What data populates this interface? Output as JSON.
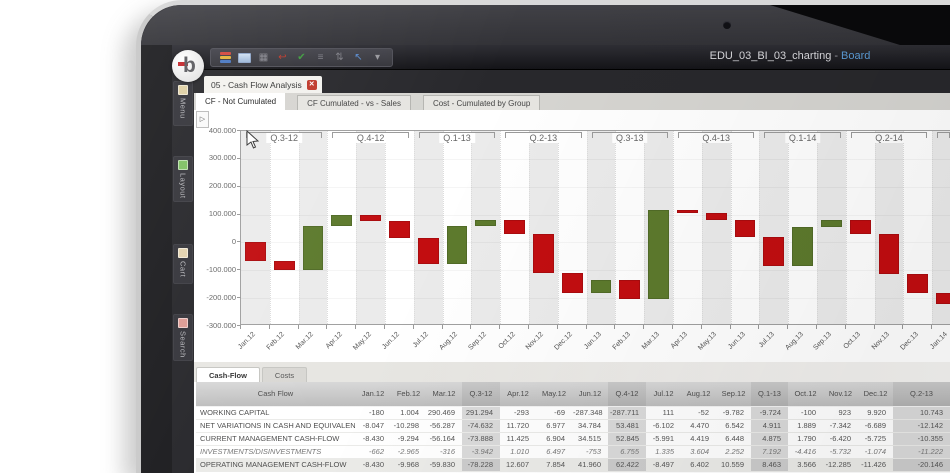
{
  "window": {
    "title": "EDU_03_BI_03_charting",
    "separator": "-",
    "title_brand": "Board",
    "logo_letter": "b"
  },
  "icons": {
    "close_glyph": "✕",
    "panel_arrow_glyph": "▷"
  },
  "toolbar": {
    "icons": [
      {
        "name": "capsules-stack-icon",
        "type": "stack"
      },
      {
        "name": "screen-icon",
        "type": "monitor"
      },
      {
        "name": "slide-grid-icon",
        "glyph": "▦",
        "color": "#8a8a92"
      },
      {
        "name": "undo-arrow-icon",
        "glyph": "↩",
        "color": "#c0392b"
      },
      {
        "name": "apply-check-icon",
        "glyph": "✔",
        "color": "#3f9b3f"
      },
      {
        "name": "list-icon",
        "glyph": "≡",
        "color": "#7d7d85"
      },
      {
        "name": "swap-icon",
        "glyph": "⇅",
        "color": "#7d7d85"
      },
      {
        "name": "design-pointer-icon",
        "glyph": "↖",
        "color": "#5b8fd6"
      },
      {
        "name": "toolbar-overflow-icon",
        "glyph": "▾",
        "color": "#9a9aa0"
      }
    ]
  },
  "doc_tab": {
    "label": "05 - Cash Flow Analysis"
  },
  "subtabs": [
    {
      "label": "CF - Not Cumulated",
      "active": true
    },
    {
      "label": "CF Cumulated - vs - Sales",
      "active": false
    },
    {
      "label": "Cost - Cumulated by Group",
      "active": false
    }
  ],
  "sidebar": {
    "items": [
      {
        "label": "Menu",
        "icon_color": "#dfd0a4"
      },
      {
        "label": "Layout",
        "icon_color": "#7fc163"
      },
      {
        "label": "Cart",
        "icon_color": "#e3d2ae"
      },
      {
        "label": "Search",
        "icon_color": "#dd9b94"
      }
    ]
  },
  "colors": {
    "bar_up": "#5d7a2d",
    "bar_down": "#c20d10",
    "accent_blue": "#5b9bd5",
    "close_red": "#c0392b",
    "band_gray": "#ebebeb",
    "quarter_shade": "#dadada"
  },
  "chart_data": {
    "type": "bar",
    "subtype": "waterfall",
    "title": "CF - Not Cumulated",
    "xlabel": "",
    "ylabel": "",
    "ylim": [
      -300000,
      400000
    ],
    "grid": "alternating vertical month bands",
    "legend": "none",
    "ytick_labels": [
      "400.000",
      "300.000",
      "200.000",
      "100.000",
      "0",
      "-100.000",
      "-200.000",
      "-300.000"
    ],
    "categories": [
      "Jan.12",
      "Feb.12",
      "Mar.12",
      "Apr.12",
      "May.12",
      "Jun.12",
      "Jul.12",
      "Aug.12",
      "Sep.12",
      "Oct.12",
      "Nov.12",
      "Dec.12",
      "Jan.13",
      "Feb.13",
      "Mar.13",
      "Apr.13",
      "May.13",
      "Jun.13",
      "Jul.13",
      "Aug.13",
      "Sep.13",
      "Oct.13",
      "Nov.13",
      "Dec.13",
      "Jan.14"
    ],
    "bars": [
      {
        "month": "Jan.12",
        "start": 0,
        "end": -65000
      },
      {
        "month": "Feb.12",
        "start": -65000,
        "end": -100000
      },
      {
        "month": "Mar.12",
        "start": -100000,
        "end": 60000
      },
      {
        "month": "Apr.12",
        "start": 60000,
        "end": 100000
      },
      {
        "month": "May.12",
        "start": 100000,
        "end": 78000
      },
      {
        "month": "Jun.12",
        "start": 78000,
        "end": 15000
      },
      {
        "month": "Jul.12",
        "start": 15000,
        "end": -78000
      },
      {
        "month": "Aug.12",
        "start": -78000,
        "end": 58000
      },
      {
        "month": "Sep.12",
        "start": 58000,
        "end": 80000
      },
      {
        "month": "Oct.12",
        "start": 80000,
        "end": 30000
      },
      {
        "month": "Nov.12",
        "start": 30000,
        "end": -108000
      },
      {
        "month": "Dec.12",
        "start": -108000,
        "end": -180000
      },
      {
        "month": "Jan.13",
        "start": -180000,
        "end": -135000
      },
      {
        "month": "Feb.13",
        "start": -135000,
        "end": -202000
      },
      {
        "month": "Mar.13",
        "start": -202000,
        "end": 117000
      },
      {
        "month": "Apr.13",
        "start": 117000,
        "end": 105000
      },
      {
        "month": "May.13",
        "start": 105000,
        "end": 82000
      },
      {
        "month": "Jun.13",
        "start": 82000,
        "end": 18000
      },
      {
        "month": "Jul.13",
        "start": 18000,
        "end": -85000
      },
      {
        "month": "Aug.13",
        "start": -85000,
        "end": 57000
      },
      {
        "month": "Sep.13",
        "start": 57000,
        "end": 82000
      },
      {
        "month": "Oct.13",
        "start": 82000,
        "end": 30000
      },
      {
        "month": "Nov.13",
        "start": 30000,
        "end": -112000
      },
      {
        "month": "Dec.13",
        "start": -112000,
        "end": -183000
      },
      {
        "month": "Jan.14",
        "start": -183000,
        "end": -220000
      }
    ],
    "quarters": [
      {
        "label": "Q.3-12"
      },
      {
        "label": "Q.4-12"
      },
      {
        "label": "Q.1-13"
      },
      {
        "label": "Q.2-13"
      },
      {
        "label": "Q.3-13"
      },
      {
        "label": "Q.4-13"
      },
      {
        "label": "Q.1-14"
      },
      {
        "label": "Q.2-14"
      },
      {
        "label": ""
      }
    ]
  },
  "table": {
    "tabs": [
      {
        "label": "Cash-Flow",
        "active": true
      },
      {
        "label": "Costs",
        "active": false
      }
    ],
    "header": [
      "Cash Flow",
      "Jan.12",
      "Feb.12",
      "Mar.12",
      "Q.3-12",
      "Apr.12",
      "May.12",
      "Jun.12",
      "Q.4-12",
      "Jul.12",
      "Aug.12",
      "Sep.12",
      "Q.1-13",
      "Oct.12",
      "Nov.12",
      "Dec.12",
      "Q.2-13"
    ],
    "quarter_columns": [
      4,
      8,
      12,
      16
    ],
    "rows": [
      {
        "label": "WORKING CAPITAL",
        "style": "normal",
        "values": [
          "-180",
          "1.004",
          "290.469",
          "291.294",
          "-293",
          "-69",
          "-287.348",
          "-287.711",
          "111",
          "-52",
          "-9.782",
          "-9.724",
          "-100",
          "923",
          "9.920",
          "10.743"
        ]
      },
      {
        "label": "NET VARIATIONS IN CASH AND EQUIVALENTS",
        "style": "normal",
        "values": [
          "-8.047",
          "-10.298",
          "-56.287",
          "-74.632",
          "11.720",
          "6.977",
          "34.784",
          "53.481",
          "-6.102",
          "4.470",
          "6.542",
          "4.911",
          "1.889",
          "-7.342",
          "-6.689",
          "-12.142"
        ]
      },
      {
        "label": "CURRENT MANAGEMENT CASH-FLOW",
        "style": "normal",
        "values": [
          "-8.430",
          "-9.294",
          "-56.164",
          "-73.888",
          "11.425",
          "6.904",
          "34.515",
          "52.845",
          "-5.991",
          "4.419",
          "6.448",
          "4.875",
          "1.790",
          "-6.420",
          "-5.725",
          "-10.355"
        ]
      },
      {
        "label": "INVESTMENTS/DISINVESTMENTS",
        "style": "italic",
        "values": [
          "-662",
          "-2.965",
          "-316",
          "-3.942",
          "1.010",
          "6.497",
          "-753",
          "6.755",
          "1.335",
          "3.604",
          "2.252",
          "7.192",
          "-4.416",
          "-5.732",
          "-1.074",
          "-11.222"
        ]
      },
      {
        "label": "OPERATING MANAGEMENT CASH-FLOW",
        "style": "shaded",
        "values": [
          "-8.430",
          "-9.968",
          "-59.830",
          "-78.228",
          "12.607",
          "7.854",
          "41.960",
          "62.422",
          "-8.497",
          "6.402",
          "10.559",
          "8.463",
          "3.566",
          "-12.285",
          "-11.426",
          "-20.146"
        ]
      }
    ]
  }
}
